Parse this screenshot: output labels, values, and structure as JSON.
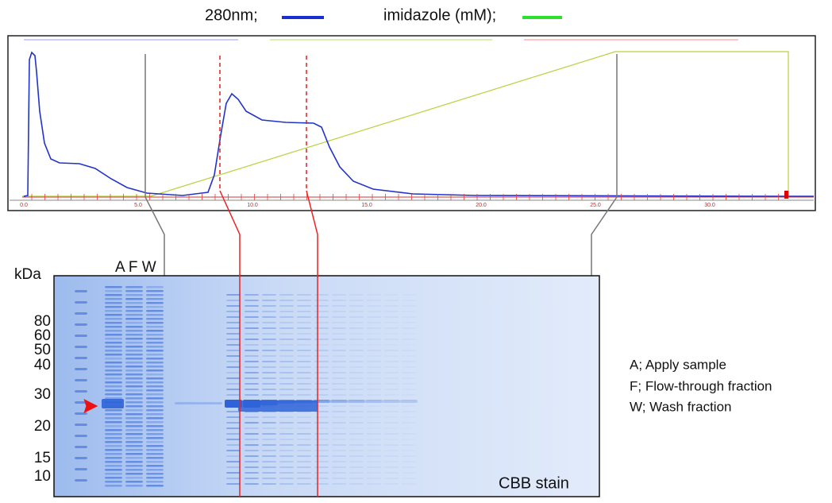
{
  "legend": {
    "absorbance": "280nm;",
    "imidazole": "imidazole (mM);"
  },
  "chromatogram": {
    "x_ticks": [
      "0.0",
      "5.0",
      "10.0",
      "15.0",
      "20.0",
      "25.0",
      "30.0"
    ]
  },
  "gel": {
    "unit": "kDa",
    "lanes": "A F W",
    "markers": [
      "80",
      "60",
      "50",
      "40",
      "30",
      "20",
      "15",
      "10"
    ],
    "stain": "CBB stain"
  },
  "notes": [
    "A; Apply sample",
    "F; Flow-through fraction",
    "W; Wash fraction"
  ]
}
